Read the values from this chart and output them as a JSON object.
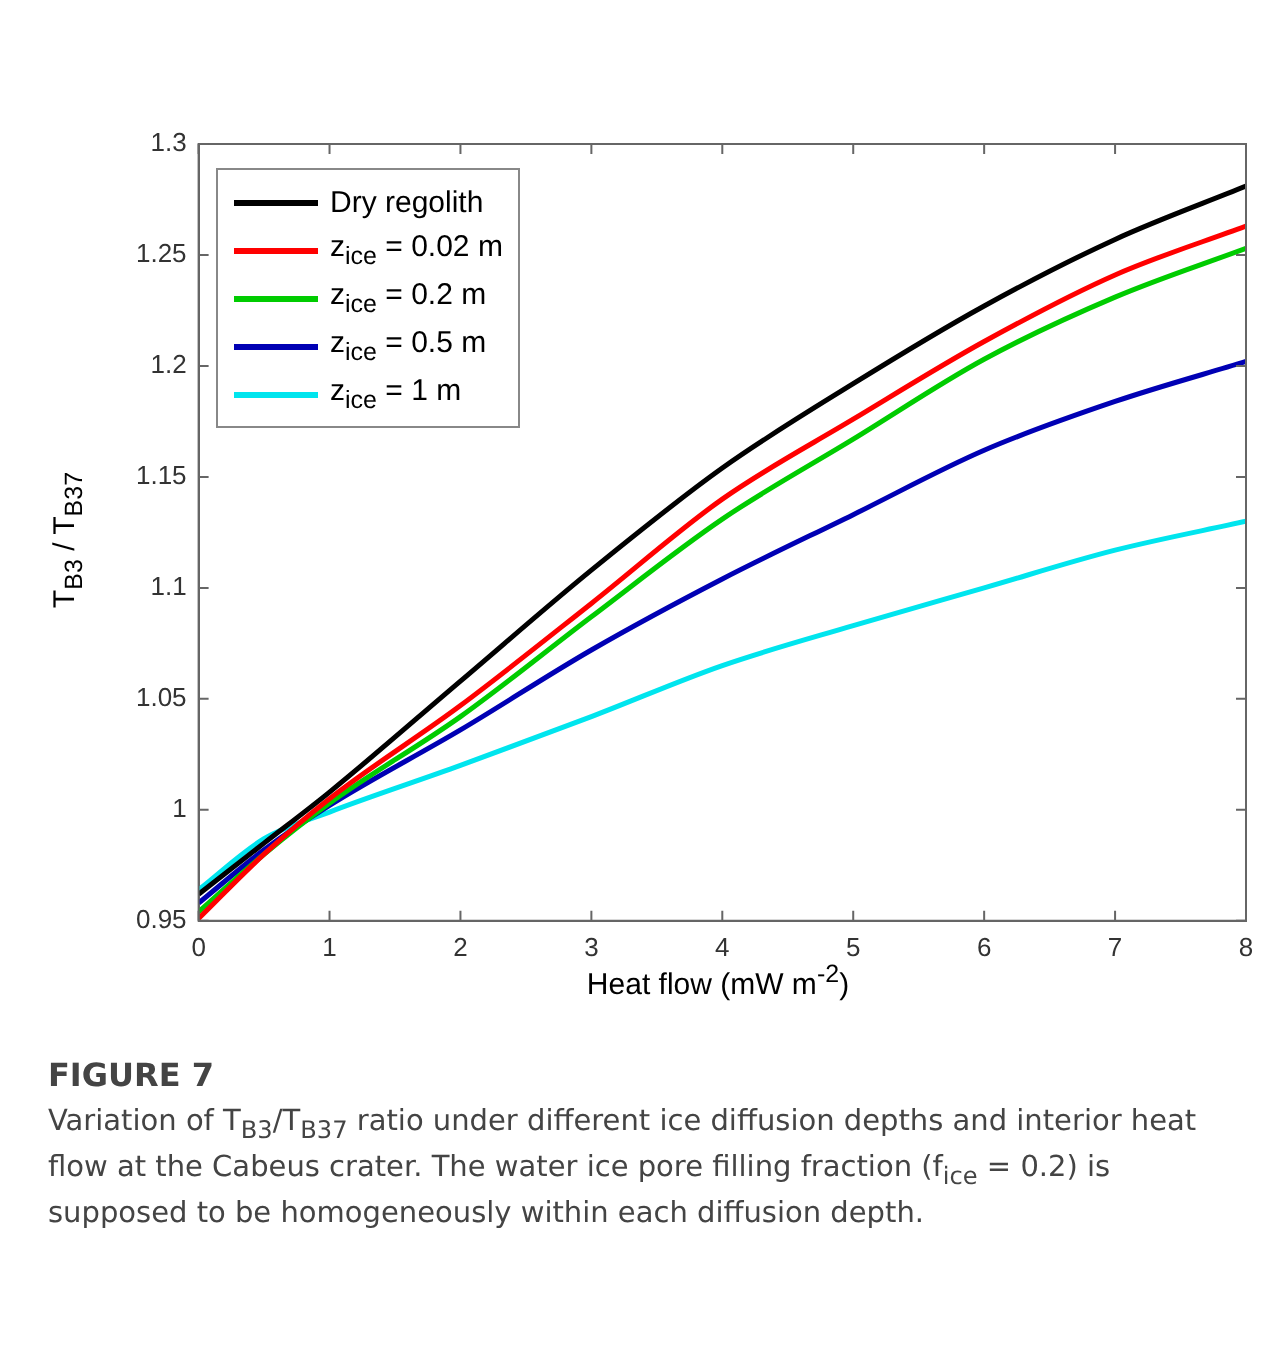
{
  "chart_data": {
    "type": "line",
    "xlabel": "Heat flow (mW m$^{-2}$)",
    "ylabel": "T$_{B3}$ / T$_{B37}$",
    "x": [
      0,
      0.5,
      1,
      2,
      3,
      4,
      5,
      6,
      7,
      8
    ],
    "series": [
      {
        "name": "Dry regolith",
        "color": "#000000",
        "values": [
          0.962,
          0.985,
          1.008,
          1.058,
          1.108,
          1.154,
          1.192,
          1.227,
          1.257,
          1.281
        ]
      },
      {
        "name": "z$_{ice}$ = 0.02 m",
        "color": "#ff0000",
        "values": [
          0.951,
          0.98,
          1.005,
          1.047,
          1.093,
          1.14,
          1.176,
          1.211,
          1.241,
          1.263
        ]
      },
      {
        "name": "z$_{ice}$ = 0.2 m",
        "color": "#00cc00",
        "values": [
          0.954,
          0.98,
          1.003,
          1.042,
          1.087,
          1.131,
          1.167,
          1.203,
          1.231,
          1.253
        ]
      },
      {
        "name": "z$_{ice}$ = 0.5 m",
        "color": "#0000b4",
        "values": [
          0.958,
          0.982,
          1.002,
          1.036,
          1.072,
          1.104,
          1.133,
          1.162,
          1.184,
          1.202
        ]
      },
      {
        "name": "z$_{ice}$ = 1 m",
        "color": "#00e5ee",
        "values": [
          0.964,
          0.987,
          0.999,
          1.02,
          1.042,
          1.065,
          1.083,
          1.1,
          1.117,
          1.13
        ]
      }
    ],
    "xlim": [
      0,
      8
    ],
    "xticks": [
      0,
      1,
      2,
      3,
      4,
      5,
      6,
      7,
      8
    ],
    "ylim": [
      0.95,
      1.3
    ],
    "yticks": [
      0.95,
      1,
      1.05,
      1.1,
      1.15,
      1.2,
      1.25,
      1.3
    ],
    "grid": false,
    "legend": "top left",
    "marker": "none",
    "line_style": "solid",
    "annotations": [
      "FIGURE 7",
      "Variation of T$_{B3}$/T$_{B37}$ ratio under different ice diffusion depths and interior heat flow at the Cabeus crater. The water ice pore filling fraction (f$_{ice}$ = 0.2) is supposed to be homogeneously within each diffusion depth."
    ]
  }
}
